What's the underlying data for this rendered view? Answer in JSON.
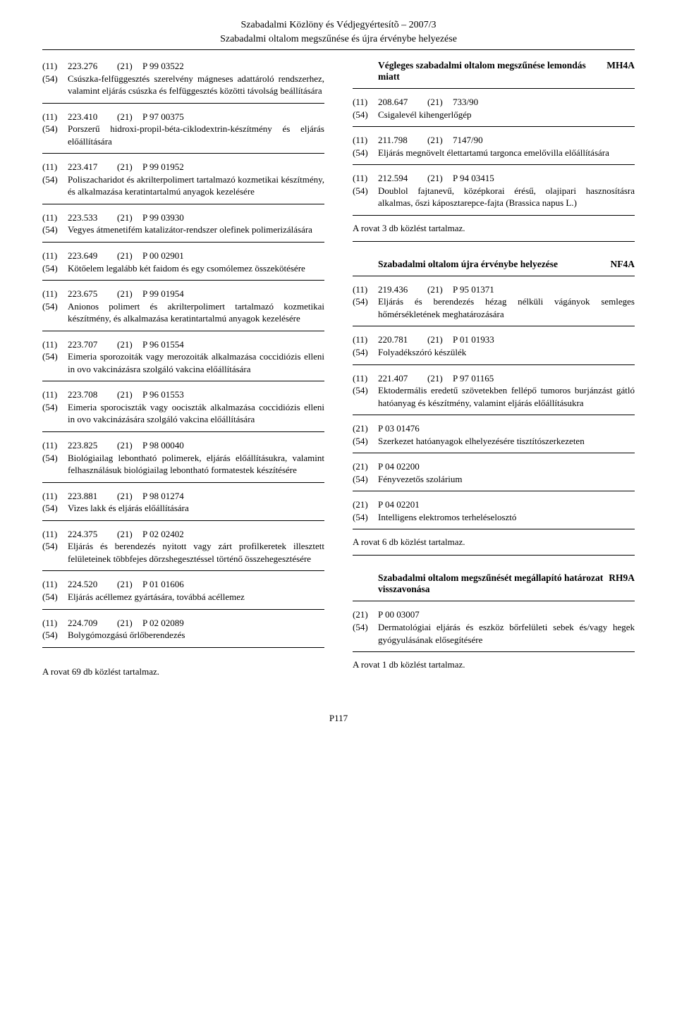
{
  "header": "Szabadalmi Közlöny és Védjegyértesítõ – 2007/3",
  "subheader": "Szabadalmi oltalom megszűnése és újra érvénybe helyezése",
  "footer": "P117",
  "labels": {
    "inid11": "(11)",
    "inid21": "(21)",
    "inid54": "(54)"
  },
  "left": [
    {
      "n11": "223.276",
      "n21": "P 99 03522",
      "desc": "Csúszka-felfüggesztés szerelvény mágneses adattároló rendszerhez, valamint eljárás csúszka és felfüggesztés közötti távolság beállítására"
    },
    {
      "n11": "223.410",
      "n21": "P 97 00375",
      "desc": "Porszerű hidroxi-propil-béta-ciklodextrin-készítmény és eljárás előállítására"
    },
    {
      "n11": "223.417",
      "n21": "P 99 01952",
      "desc": "Poliszacharidot és akrilterpolimert tartalmazó kozmetikai készítmény, és alkalmazása keratintartalmú anyagok kezelésére"
    },
    {
      "n11": "223.533",
      "n21": "P 99 03930",
      "desc": "Vegyes átmenetifém katalizátor-rendszer olefinek polimerizálására"
    },
    {
      "n11": "223.649",
      "n21": "P 00 02901",
      "desc": "Kötőelem legalább két faidom és egy csomólemez összekötésére"
    },
    {
      "n11": "223.675",
      "n21": "P 99 01954",
      "desc": "Anionos polimert és akrilterpolimert tartalmazó kozmetikai készítmény, és alkalmazása keratintartalmú anyagok kezelésére"
    },
    {
      "n11": "223.707",
      "n21": "P 96 01554",
      "desc": "Eimeria sporozoiták vagy merozoiták alkalmazása coccidiózis elleni in ovo vakcinázásra szolgáló vakcina előállítására"
    },
    {
      "n11": "223.708",
      "n21": "P 96 01553",
      "desc": "Eimeria sporociszták vagy oociszták alkalmazása coccidiózis elleni in ovo vakcinázására szolgáló vakcina előállítására"
    },
    {
      "n11": "223.825",
      "n21": "P 98 00040",
      "desc": "Biológiailag lebontható polimerek, eljárás előállításukra, valamint felhasználásuk biológiailag lebontható formatestek készítésére"
    },
    {
      "n11": "223.881",
      "n21": "P 98 01274",
      "desc": "Vizes lakk és eljárás előállítására"
    },
    {
      "n11": "224.375",
      "n21": "P 02 02402",
      "desc": "Eljárás és berendezés nyitott vagy zárt profilkeretek illesztett felületeinek többfejes dörzshegesztéssel történő összehegesztésére"
    },
    {
      "n11": "224.520",
      "n21": "P 01 01606",
      "desc": "Eljárás acéllemez gyártására, továbbá acéllemez"
    },
    {
      "n11": "224.709",
      "n21": "P 02 02089",
      "desc": "Bolygómozgású őrlőberendezés"
    }
  ],
  "left_summary": "A rovat 69 db közlést tartalmaz.",
  "sections": [
    {
      "title": "Végleges szabadalmi oltalom megszűnése lemondás miatt",
      "code": "MH4A",
      "entries": [
        {
          "n11": "208.647",
          "n21": "733/90",
          "desc": "Csigalevél kihengerlőgép"
        },
        {
          "n11": "211.798",
          "n21": "7147/90",
          "desc": "Eljárás megnövelt élettartamú targonca emelővilla előállítására"
        },
        {
          "n11": "212.594",
          "n21": "P 94 03415",
          "desc": "Doublol fajtanevű, középkorai érésű, olajipari hasznosításra alkalmas, őszi káposztarepce-fajta (Brassica napus L.)"
        }
      ],
      "summary": "A rovat 3 db közlést tartalmaz."
    },
    {
      "title": "Szabadalmi oltalom újra érvénybe helyezése",
      "code": "NF4A",
      "entries": [
        {
          "n11": "219.436",
          "n21": "P 95 01371",
          "desc": "Eljárás és berendezés hézag nélküli vágányok semleges hőmérsékletének meghatározására"
        },
        {
          "n11": "220.781",
          "n21": "P 01 01933",
          "desc": "Folyadékszóró készülék"
        },
        {
          "n11": "221.407",
          "n21": "P 97 01165",
          "desc": "Ektodermális eredetű szövetekben fellépő tumoros burjánzást gátló hatóanyag és készítmény, valamint eljárás előállításukra"
        },
        {
          "n21": "P 03 01476",
          "desc": "Szerkezet hatóanyagok elhelyezésére tisztítószerkezeten"
        },
        {
          "n21": "P 04 02200",
          "desc": "Fényvezetős szolárium"
        },
        {
          "n21": "P 04 02201",
          "desc": "Intelligens elektromos terheléselosztó"
        }
      ],
      "summary": "A rovat 6 db közlést tartalmaz."
    },
    {
      "title": "Szabadalmi oltalom megszűnését megállapító határozat visszavonása",
      "code": "RH9A",
      "entries": [
        {
          "n21": "P 00 03007",
          "desc": "Dermatológiai eljárás és eszköz bőrfelületi sebek és/vagy hegek gyógyulásának elősegítésére"
        }
      ],
      "summary": "A rovat 1 db közlést tartalmaz."
    }
  ]
}
